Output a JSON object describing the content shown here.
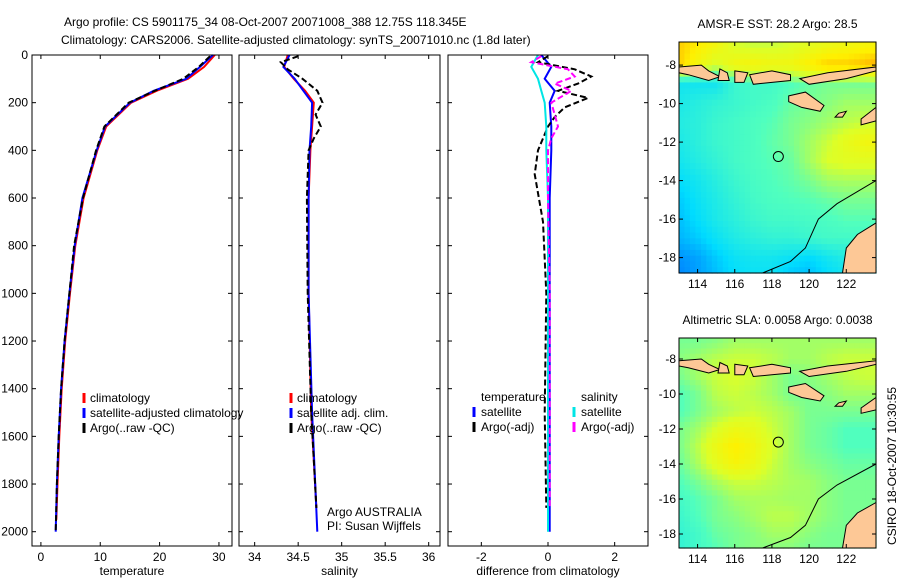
{
  "title_line1": "Argo profile: CS 5901175_34 08-Oct-2007 20071008_388 12.75S 118.345E",
  "title_line2": "Climatology: CARS2006. Satellite-adjusted climatology: synTS_20071010.nc (1.8d later)",
  "side_label": "CSIRO 18-Oct-2007 10:30:55",
  "chart_data": [
    {
      "type": "line",
      "xlabel": "temperature",
      "ylim": [
        0,
        2060
      ],
      "xlim": [
        -1.5,
        32.2
      ],
      "yticks": [
        0,
        200,
        400,
        600,
        800,
        1000,
        1200,
        1400,
        1600,
        1800,
        2000
      ],
      "xticks": [
        0,
        10,
        20,
        30
      ],
      "legend": [
        "climatology",
        "satellite-adjusted climatology",
        "Argo(..raw -QC)"
      ],
      "series": [
        {
          "name": "climatology",
          "color": "#ff0000",
          "dash": false,
          "depth": [
            0,
            50,
            100,
            150,
            200,
            300,
            400,
            600,
            800,
            1000,
            1200,
            1400,
            1600,
            1800,
            1950
          ],
          "values": [
            29.3,
            27.5,
            24.8,
            19.5,
            15.2,
            11.0,
            9.5,
            7.2,
            5.8,
            4.9,
            4.1,
            3.5,
            3.1,
            2.8,
            2.6
          ]
        },
        {
          "name": "satellite-adjusted climatology",
          "color": "#0000ff",
          "dash": false,
          "depth": [
            0,
            50,
            100,
            150,
            200,
            300,
            400,
            600,
            800,
            1000,
            1200,
            1400,
            1600,
            1800,
            2000
          ],
          "values": [
            29.0,
            26.8,
            24.5,
            19.0,
            15.0,
            10.8,
            9.4,
            7.0,
            5.7,
            4.8,
            4.0,
            3.4,
            3.0,
            2.7,
            2.5
          ]
        },
        {
          "name": "Argo(..raw -QC)",
          "color": "#000000",
          "dash": true,
          "depth": [
            5,
            50,
            100,
            150,
            200,
            300,
            400,
            600,
            800,
            1000,
            1200,
            1400,
            1600,
            1800,
            2000
          ],
          "values": [
            28.5,
            26.6,
            24.0,
            19.2,
            14.8,
            10.7,
            9.3,
            7.1,
            5.6,
            4.8,
            4.0,
            3.4,
            3.0,
            2.7,
            2.5
          ]
        }
      ]
    },
    {
      "type": "line",
      "xlabel": "salinity",
      "ylim": [
        0,
        2060
      ],
      "xlim": [
        33.82,
        36.13
      ],
      "xticks": [
        34,
        34.5,
        35,
        35.5,
        36
      ],
      "legend": [
        "climatology",
        "satellite adj. clim.",
        "Argo(..raw -QC)"
      ],
      "annotation": [
        "Argo AUSTRALIA",
        "PI: Susan Wijffels"
      ],
      "series": [
        {
          "name": "climatology",
          "color": "#ff0000",
          "dash": false,
          "depth": [
            0,
            50,
            100,
            150,
            200,
            300,
            400,
            600,
            1000,
            1500,
            1900
          ],
          "values": [
            34.38,
            34.34,
            34.45,
            34.58,
            34.68,
            34.66,
            34.64,
            34.62,
            34.62,
            34.65,
            34.71
          ]
        },
        {
          "name": "satellite adj. clim.",
          "color": "#0000ff",
          "dash": false,
          "depth": [
            0,
            50,
            100,
            150,
            200,
            300,
            400,
            600,
            1000,
            1500,
            2000
          ],
          "values": [
            34.4,
            34.33,
            34.46,
            34.56,
            34.66,
            34.65,
            34.63,
            34.62,
            34.62,
            34.66,
            34.72
          ]
        },
        {
          "name": "Argo(..raw -QC)",
          "color": "#000000",
          "dash": true,
          "depth": [
            5,
            30,
            60,
            100,
            150,
            200,
            250,
            300,
            350,
            400,
            600,
            1000,
            1500,
            1900
          ],
          "values": [
            34.5,
            34.3,
            34.38,
            34.55,
            34.72,
            34.78,
            34.7,
            34.76,
            34.68,
            34.62,
            34.6,
            34.61,
            34.65,
            34.71
          ]
        }
      ]
    },
    {
      "type": "line",
      "xlabel": "difference from climatology",
      "ylim": [
        0,
        2060
      ],
      "xlim": [
        -3,
        3
      ],
      "xticks": [
        -2,
        0,
        2
      ],
      "legend_left_title": "temperature",
      "legend_right_title": "salinity",
      "legend": [
        "satellite",
        "Argo(-adj)",
        "satellite",
        "Argo(-adj)"
      ],
      "series": [
        {
          "name": "temperature satellite",
          "color": "#0000ff",
          "dash": false,
          "depth": [
            0,
            50,
            100,
            150,
            200,
            300,
            400,
            600,
            1000,
            1500,
            2000
          ],
          "values": [
            -0.2,
            0.1,
            -0.1,
            0.2,
            0.05,
            0.1,
            0.1,
            0.05,
            0.05,
            0.05,
            0.05
          ]
        },
        {
          "name": "temperature Argo(-adj)",
          "color": "#000000",
          "dash": true,
          "depth": [
            5,
            30,
            60,
            90,
            120,
            150,
            180,
            220,
            260,
            300,
            400,
            500,
            700,
            1000,
            1500,
            1900
          ],
          "values": [
            0.0,
            -0.3,
            0.8,
            1.3,
            0.9,
            0.3,
            1.2,
            0.5,
            0.2,
            0.0,
            -0.3,
            -0.4,
            -0.15,
            -0.05,
            -0.1,
            -0.05
          ]
        },
        {
          "name": "salinity satellite",
          "color": "#00e5e5",
          "dash": false,
          "depth": [
            0,
            50,
            100,
            150,
            200,
            300,
            400,
            600,
            1000,
            1500,
            2000
          ],
          "values": [
            -0.3,
            -0.5,
            -0.3,
            -0.2,
            -0.1,
            -0.05,
            -0.05,
            0.0,
            0.0,
            0.0,
            0.0
          ]
        },
        {
          "name": "salinity Argo(-adj)",
          "color": "#ff00ff",
          "dash": true,
          "depth": [
            5,
            30,
            60,
            90,
            120,
            150,
            200,
            250,
            300,
            350,
            400,
            600,
            1000,
            1500,
            1900
          ],
          "values": [
            -0.2,
            -0.5,
            0.6,
            0.8,
            0.2,
            0.7,
            0.1,
            0.2,
            0.3,
            0.1,
            0.0,
            0.0,
            0.05,
            0.05,
            0.05
          ]
        }
      ]
    },
    {
      "type": "heatmap",
      "title": "AMSR-E SST: 28.2 Argo: 28.5",
      "xlim": [
        113,
        123.6
      ],
      "ylim": [
        -18.8,
        -6.8
      ],
      "xticks": [
        114,
        116,
        118,
        120,
        122
      ],
      "yticks": [
        -8,
        -10,
        -12,
        -14,
        -16,
        -18
      ],
      "lats": [
        -7,
        -8,
        -9,
        -10,
        -11,
        -12,
        -13,
        -14,
        -15,
        -16,
        -17,
        -18,
        -18.8
      ],
      "lons": [
        113,
        114,
        115,
        116,
        117,
        118,
        119,
        120,
        121,
        122,
        123,
        123.6
      ],
      "values": [
        [
          0.8,
          0.75,
          0.7,
          0.62,
          0.6,
          0.6,
          0.62,
          0.65,
          0.68,
          0.7,
          0.72,
          0.72
        ],
        [
          0.8,
          0.7,
          0.62,
          0.7,
          0.72,
          0.7,
          0.7,
          0.75,
          0.8,
          0.8,
          0.82,
          0.85
        ],
        [
          0.3,
          0.3,
          0.3,
          0.4,
          0.42,
          0.42,
          0.45,
          0.48,
          0.5,
          0.5,
          0.5,
          0.5
        ],
        [
          0.32,
          0.35,
          0.38,
          0.4,
          0.42,
          0.44,
          0.48,
          0.5,
          0.52,
          0.55,
          0.55,
          0.55
        ],
        [
          0.34,
          0.36,
          0.4,
          0.42,
          0.44,
          0.46,
          0.5,
          0.52,
          0.55,
          0.58,
          0.6,
          0.6
        ],
        [
          0.32,
          0.36,
          0.4,
          0.42,
          0.44,
          0.47,
          0.5,
          0.55,
          0.6,
          0.66,
          0.7,
          0.7
        ],
        [
          0.3,
          0.34,
          0.38,
          0.42,
          0.44,
          0.46,
          0.48,
          0.55,
          0.62,
          0.64,
          0.64,
          0.64
        ],
        [
          0.26,
          0.3,
          0.35,
          0.4,
          0.43,
          0.45,
          0.47,
          0.5,
          0.55,
          0.56,
          0.56,
          0.56
        ],
        [
          0.22,
          0.28,
          0.33,
          0.38,
          0.42,
          0.44,
          0.45,
          0.46,
          0.48,
          0.5,
          0.5,
          0.5
        ],
        [
          0.2,
          0.26,
          0.32,
          0.36,
          0.4,
          0.42,
          0.42,
          0.43,
          0.44,
          0.46,
          0.46,
          0.46
        ],
        [
          0.18,
          0.22,
          0.28,
          0.33,
          0.36,
          0.38,
          0.38,
          0.4,
          0.42,
          0.42,
          0.42,
          0.42
        ],
        [
          0.12,
          0.15,
          0.22,
          0.28,
          0.3,
          0.3,
          0.28,
          0.25,
          0.3,
          0.34,
          0.36,
          0.36
        ],
        [
          0.1,
          0.14,
          0.2,
          0.26,
          0.28,
          0.28,
          0.22,
          0.2,
          0.26,
          0.3,
          0.32,
          0.32
        ]
      ],
      "marker": {
        "lon": 118.345,
        "lat": -12.75
      }
    },
    {
      "type": "heatmap",
      "title": "Altimetric SLA: 0.0058 Argo: 0.0038",
      "xlim": [
        113,
        123.6
      ],
      "ylim": [
        -18.8,
        -6.8
      ],
      "xticks": [
        114,
        116,
        118,
        120,
        122
      ],
      "yticks": [
        -8,
        -10,
        -12,
        -14,
        -16,
        -18
      ],
      "lats": [
        -7,
        -8,
        -9,
        -10,
        -11,
        -12,
        -13,
        -14,
        -15,
        -16,
        -17,
        -18,
        -18.8
      ],
      "lons": [
        113,
        114,
        115,
        116,
        117,
        118,
        119,
        120,
        121,
        122,
        123,
        123.6
      ],
      "values": [
        [
          0.5,
          0.5,
          0.52,
          0.55,
          0.55,
          0.55,
          0.55,
          0.55,
          0.55,
          0.55,
          0.55,
          0.55
        ],
        [
          0.52,
          0.55,
          0.58,
          0.6,
          0.6,
          0.58,
          0.55,
          0.55,
          0.58,
          0.6,
          0.6,
          0.6
        ],
        [
          0.5,
          0.55,
          0.6,
          0.62,
          0.6,
          0.55,
          0.5,
          0.52,
          0.55,
          0.58,
          0.6,
          0.6
        ],
        [
          0.45,
          0.5,
          0.58,
          0.6,
          0.58,
          0.55,
          0.5,
          0.5,
          0.52,
          0.55,
          0.55,
          0.55
        ],
        [
          0.45,
          0.5,
          0.55,
          0.58,
          0.6,
          0.58,
          0.55,
          0.5,
          0.5,
          0.5,
          0.5,
          0.5
        ],
        [
          0.5,
          0.55,
          0.62,
          0.68,
          0.66,
          0.6,
          0.55,
          0.5,
          0.48,
          0.45,
          0.45,
          0.45
        ],
        [
          0.5,
          0.58,
          0.68,
          0.75,
          0.7,
          0.62,
          0.55,
          0.5,
          0.48,
          0.45,
          0.45,
          0.45
        ],
        [
          0.48,
          0.56,
          0.65,
          0.72,
          0.68,
          0.6,
          0.55,
          0.52,
          0.5,
          0.48,
          0.48,
          0.48
        ],
        [
          0.45,
          0.5,
          0.56,
          0.6,
          0.6,
          0.58,
          0.56,
          0.55,
          0.52,
          0.5,
          0.5,
          0.5
        ],
        [
          0.42,
          0.46,
          0.5,
          0.55,
          0.56,
          0.56,
          0.55,
          0.55,
          0.52,
          0.5,
          0.5,
          0.5
        ],
        [
          0.4,
          0.45,
          0.5,
          0.52,
          0.55,
          0.58,
          0.58,
          0.55,
          0.52,
          0.5,
          0.5,
          0.5
        ],
        [
          0.38,
          0.42,
          0.48,
          0.5,
          0.52,
          0.55,
          0.55,
          0.52,
          0.5,
          0.5,
          0.5,
          0.5
        ],
        [
          0.38,
          0.42,
          0.46,
          0.5,
          0.52,
          0.52,
          0.52,
          0.5,
          0.5,
          0.5,
          0.5,
          0.5
        ]
      ],
      "marker": {
        "lon": 118.345,
        "lat": -12.75
      }
    }
  ],
  "colors": {
    "land": "#fdc896",
    "axis": "#000000"
  },
  "land": [
    [
      [
        113,
        -8.1
      ],
      [
        114.2,
        -8.0
      ],
      [
        114.6,
        -8.3
      ],
      [
        115.2,
        -8.6
      ],
      [
        114.6,
        -8.8
      ],
      [
        113.5,
        -8.5
      ],
      [
        113,
        -8.4
      ]
    ],
    [
      [
        115.2,
        -8.2
      ],
      [
        115.6,
        -8.4
      ],
      [
        115.7,
        -8.8
      ],
      [
        115.1,
        -8.8
      ]
    ],
    [
      [
        116,
        -8.3
      ],
      [
        116.7,
        -8.4
      ],
      [
        116.5,
        -8.9
      ],
      [
        116,
        -8.9
      ]
    ],
    [
      [
        116.8,
        -8.5
      ],
      [
        118,
        -8.3
      ],
      [
        119,
        -8.5
      ],
      [
        119,
        -8.8
      ],
      [
        118,
        -8.9
      ],
      [
        117,
        -9.0
      ]
    ],
    [
      [
        119.5,
        -8.7
      ],
      [
        121,
        -8.4
      ],
      [
        123.6,
        -8.1
      ],
      [
        123.6,
        -8.3
      ],
      [
        122,
        -8.7
      ],
      [
        120,
        -9.0
      ]
    ],
    [
      [
        118.9,
        -9.6
      ],
      [
        119.8,
        -9.4
      ],
      [
        120.8,
        -10.1
      ],
      [
        120.6,
        -10.4
      ],
      [
        119.6,
        -10.2
      ],
      [
        118.9,
        -9.9
      ]
    ],
    [
      [
        121.6,
        -10.5
      ],
      [
        122,
        -10.4
      ],
      [
        121.8,
        -10.7
      ],
      [
        121.4,
        -10.7
      ]
    ],
    [
      [
        122.8,
        -10.8
      ],
      [
        123.6,
        -10.2
      ],
      [
        123.6,
        -10.9
      ],
      [
        122.8,
        -11.1
      ]
    ],
    [
      [
        123.6,
        -16.2
      ],
      [
        122.6,
        -16.8
      ],
      [
        122.0,
        -17.5
      ],
      [
        121.8,
        -18.8
      ],
      [
        123.6,
        -18.8
      ]
    ]
  ]
}
